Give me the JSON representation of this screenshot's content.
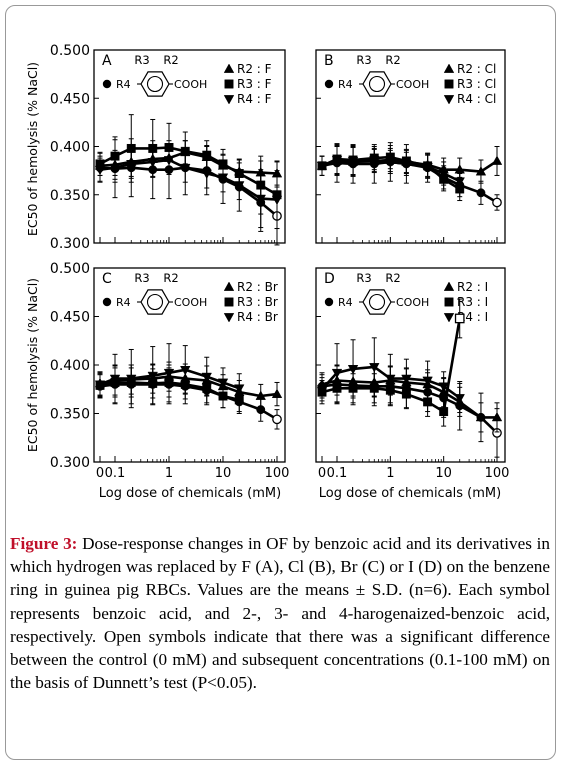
{
  "figure": {
    "ylabel": "EC50 of hemolysis (% NaCl)",
    "xlabel": "Log dose of chemicals (mM)",
    "x_ticks": [
      "0",
      "0.1",
      "1",
      "10",
      "100"
    ],
    "y_ticks": [
      "0.300",
      "0.350",
      "0.400",
      "0.450",
      "0.500"
    ],
    "structure": {
      "r3": "R3",
      "r2": "R2",
      "r4": "R4",
      "cooh": "COOH"
    }
  },
  "caption": {
    "label": "Figure 3:",
    "text": " Dose-response changes in OF by benzoic acid and its derivatives in which hydrogen was replaced by F (A), Cl (B), Br (C) or I (D) on the benzene ring in guinea pig RBCs. Values are the means ± S.D. (n=6). Each symbol represents benzoic acid, and 2-, 3- and 4-harogenaized-benzoic acid, respectively. Open symbols indicate that there was a significant difference between the control (0 mM) and subsequent concentrations (0.1-100 mM) on the basis of Dunnett’s test (P<0.05)."
  },
  "chart_data": [
    {
      "type": "line",
      "panel": "A",
      "x": [
        0,
        0.1,
        0.2,
        0.5,
        1,
        2,
        5,
        10,
        20,
        50,
        100
      ],
      "ylim": [
        0.3,
        0.5
      ],
      "legend": [
        "R2 : F",
        "R3 : F",
        "R4 : F"
      ],
      "series": [
        {
          "marker": "circle",
          "values": [
            0.378,
            0.377,
            0.378,
            0.376,
            0.376,
            0.378,
            0.375,
            0.366,
            0.358,
            0.342,
            0.328
          ],
          "err": [
            0.015,
            0.03,
            0.03,
            0.03,
            0.03,
            0.028,
            0.025,
            0.025,
            0.025,
            0.03,
            0.03
          ],
          "open": [
            false,
            false,
            false,
            false,
            false,
            false,
            false,
            false,
            false,
            false,
            true
          ]
        },
        {
          "marker": "triangle-up",
          "name": "R2 : F",
          "values": [
            0.38,
            0.381,
            0.384,
            0.387,
            0.388,
            0.394,
            0.389,
            0.38,
            0.374,
            0.373,
            0.372
          ],
          "err": [
            0.01,
            0.015,
            0.015,
            0.012,
            0.015,
            0.012,
            0.012,
            0.012,
            0.012,
            0.012,
            0.012
          ]
        },
        {
          "marker": "square",
          "name": "R3 : F",
          "values": [
            0.382,
            0.39,
            0.398,
            0.398,
            0.399,
            0.395,
            0.391,
            0.382,
            0.372,
            0.36,
            0.35
          ],
          "err": [
            0.012,
            0.02,
            0.035,
            0.03,
            0.025,
            0.02,
            0.015,
            0.015,
            0.015,
            0.03,
            0.035
          ]
        },
        {
          "marker": "triangle-down",
          "name": "R4 : F",
          "values": [
            0.376,
            0.378,
            0.382,
            0.384,
            0.386,
            0.378,
            0.372,
            0.368,
            0.36,
            0.346,
            0.345
          ],
          "err": [
            0.012,
            0.015,
            0.015,
            0.015,
            0.015,
            0.015,
            0.015,
            0.015,
            0.015,
            0.03,
            0.03
          ]
        }
      ]
    },
    {
      "type": "line",
      "panel": "B",
      "x": [
        0,
        0.1,
        0.2,
        0.5,
        1,
        2,
        5,
        10,
        20,
        50,
        100
      ],
      "ylim": [
        0.3,
        0.5
      ],
      "legend": [
        "R2 : Cl",
        "R3 : Cl",
        "R4 : Cl"
      ],
      "series": [
        {
          "marker": "circle",
          "values": [
            0.38,
            0.383,
            0.382,
            0.382,
            0.384,
            0.382,
            0.378,
            0.368,
            0.36,
            0.352,
            0.342
          ],
          "err": [
            0.01,
            0.02,
            0.02,
            0.02,
            0.02,
            0.02,
            0.015,
            0.012,
            0.012,
            0.012,
            0.008
          ],
          "open": [
            false,
            false,
            false,
            false,
            false,
            false,
            false,
            false,
            false,
            false,
            true
          ]
        },
        {
          "marker": "triangle-up",
          "name": "R2 : Cl",
          "values": [
            0.38,
            0.385,
            0.384,
            0.385,
            0.386,
            0.384,
            0.381,
            0.376,
            0.376,
            0.374,
            0.385
          ],
          "err": [
            0.01,
            0.015,
            0.015,
            0.012,
            0.012,
            0.012,
            0.012,
            0.012,
            0.012,
            0.012,
            0.015
          ]
        },
        {
          "marker": "square",
          "name": "R3 : Cl",
          "values": [
            0.38,
            0.387,
            0.386,
            0.388,
            0.389,
            0.385,
            0.38,
            0.366,
            0.356,
            null,
            null
          ],
          "err": [
            0.01,
            0.015,
            0.015,
            0.012,
            0.012,
            0.012,
            0.012,
            0.012,
            0.012,
            null,
            null
          ]
        },
        {
          "marker": "triangle-down",
          "name": "R4 : Cl",
          "values": [
            0.38,
            0.386,
            0.385,
            0.386,
            0.384,
            0.382,
            0.379,
            0.372,
            0.364,
            null,
            null
          ],
          "err": [
            0.01,
            0.015,
            0.015,
            0.012,
            0.012,
            0.012,
            0.012,
            0.012,
            0.012,
            null,
            null
          ]
        }
      ]
    },
    {
      "type": "line",
      "panel": "C",
      "x": [
        0,
        0.1,
        0.2,
        0.5,
        1,
        2,
        5,
        10,
        20,
        50,
        100
      ],
      "ylim": [
        0.3,
        0.5
      ],
      "legend": [
        "R2 : Br",
        "R3 : Br",
        "R4 : Br"
      ],
      "series": [
        {
          "marker": "circle",
          "values": [
            0.378,
            0.38,
            0.38,
            0.38,
            0.38,
            0.378,
            0.374,
            0.368,
            0.362,
            0.354,
            0.344
          ],
          "err": [
            0.012,
            0.02,
            0.02,
            0.02,
            0.02,
            0.018,
            0.015,
            0.012,
            0.012,
            0.012,
            0.01
          ],
          "open": [
            false,
            false,
            false,
            false,
            false,
            false,
            false,
            false,
            false,
            false,
            true
          ]
        },
        {
          "marker": "triangle-up",
          "name": "R2 : Br",
          "values": [
            0.381,
            0.384,
            0.385,
            0.386,
            0.388,
            0.386,
            0.384,
            0.378,
            0.372,
            0.368,
            0.37
          ],
          "err": [
            0.012,
            0.015,
            0.015,
            0.015,
            0.015,
            0.015,
            0.015,
            0.012,
            0.012,
            0.012,
            0.012
          ]
        },
        {
          "marker": "square",
          "name": "R3 : Br",
          "values": [
            0.379,
            0.382,
            0.382,
            0.381,
            0.382,
            0.38,
            0.376,
            0.368,
            0.364,
            null,
            null
          ],
          "err": [
            0.012,
            0.015,
            0.015,
            0.015,
            0.015,
            0.015,
            0.015,
            0.012,
            0.012,
            null,
            null
          ]
        },
        {
          "marker": "triangle-down",
          "name": "R4 : Br",
          "values": [
            0.38,
            0.386,
            0.386,
            0.389,
            0.392,
            0.395,
            0.388,
            0.382,
            0.376,
            null,
            null
          ],
          "err": [
            0.012,
            0.025,
            0.03,
            0.03,
            0.03,
            0.025,
            0.02,
            0.015,
            0.015,
            null,
            null
          ]
        }
      ]
    },
    {
      "type": "line",
      "panel": "D",
      "x": [
        0,
        0.1,
        0.2,
        0.5,
        1,
        2,
        5,
        10,
        20,
        50,
        100
      ],
      "ylim": [
        0.3,
        0.5
      ],
      "legend": [
        "R2 : I",
        "R3 : I",
        "R4 : I"
      ],
      "series": [
        {
          "marker": "circle",
          "values": [
            0.378,
            0.38,
            0.379,
            0.378,
            0.378,
            0.376,
            0.372,
            0.366,
            0.358,
            0.346,
            0.33
          ],
          "err": [
            0.012,
            0.02,
            0.02,
            0.02,
            0.02,
            0.02,
            0.02,
            0.02,
            0.025,
            0.025,
            0.025
          ],
          "open": [
            false,
            false,
            false,
            false,
            false,
            false,
            false,
            false,
            false,
            false,
            true
          ]
        },
        {
          "marker": "triangle-up",
          "name": "R2 : I",
          "values": [
            0.38,
            0.384,
            0.383,
            0.382,
            0.384,
            0.382,
            0.38,
            0.372,
            0.362,
            0.346,
            0.346
          ],
          "err": [
            0.012,
            0.015,
            0.015,
            0.015,
            0.015,
            0.015,
            0.015,
            0.015,
            0.015,
            0.015,
            0.015
          ]
        },
        {
          "marker": "square",
          "name": "R3 : I",
          "values": [
            0.372,
            0.376,
            0.376,
            0.376,
            0.374,
            0.37,
            0.362,
            0.352,
            0.448,
            null,
            null
          ],
          "err": [
            0.012,
            0.015,
            0.015,
            0.015,
            0.015,
            0.015,
            0.015,
            0.015,
            0.02,
            null,
            null
          ],
          "open": [
            false,
            false,
            false,
            false,
            false,
            false,
            false,
            false,
            true,
            false,
            false
          ]
        },
        {
          "marker": "triangle-down",
          "name": "R4 : I",
          "values": [
            0.375,
            0.392,
            0.396,
            0.398,
            0.386,
            0.386,
            0.384,
            0.378,
            0.366,
            null,
            null
          ],
          "err": [
            0.012,
            0.03,
            0.03,
            0.03,
            0.025,
            0.02,
            0.02,
            0.015,
            0.015,
            null,
            null
          ]
        }
      ]
    }
  ]
}
